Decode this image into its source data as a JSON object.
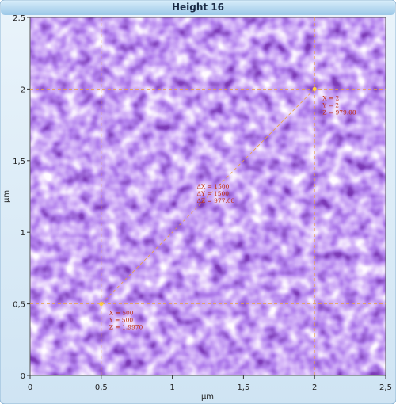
{
  "chart_data": {
    "type": "image",
    "title": "Height 16",
    "x_label": "µm",
    "y_label": "µm",
    "xlim": [
      0,
      2.5
    ],
    "ylim": [
      0,
      2.5
    ],
    "xticks": [
      0,
      {
        "value": 0.5,
        "label": "0,5"
      },
      1,
      {
        "value": 1.5,
        "label": "1,5"
      },
      2,
      {
        "value": 2.5,
        "label": "2,5"
      }
    ],
    "yticks": [
      0,
      {
        "value": 0.5,
        "label": "0,5"
      },
      1,
      {
        "value": 1.5,
        "label": "1,5"
      },
      2,
      {
        "value": 2.5,
        "label": "2,5"
      }
    ],
    "cursors": [
      {
        "x": 0.5,
        "y": 0.5,
        "labels": [
          "X = 500",
          "Y = 500",
          "Z = 1.9970"
        ]
      },
      {
        "x": 2,
        "y": 2,
        "labels": [
          "X = 2",
          "Y = 2",
          "Z = 979.08"
        ]
      }
    ],
    "delta_labels": [
      "ΔX = 1500",
      "ΔY = 1500",
      "ΔZ = 977.08"
    ],
    "color": "#e8a040"
  }
}
